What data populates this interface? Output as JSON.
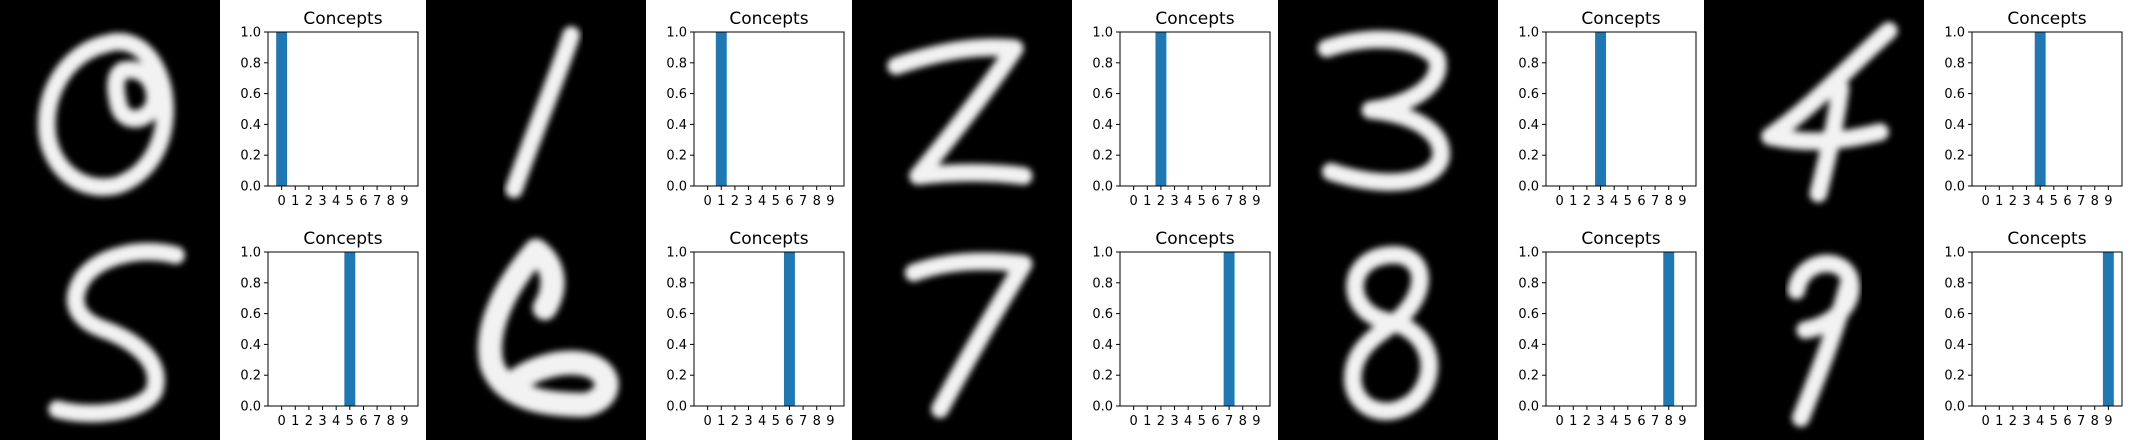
{
  "chart_data": [
    {
      "type": "bar",
      "digit": "0",
      "title": "Concepts",
      "categories": [
        "0",
        "1",
        "2",
        "3",
        "4",
        "5",
        "6",
        "7",
        "8",
        "9"
      ],
      "values": [
        1,
        0,
        0,
        0,
        0,
        0,
        0,
        0,
        0,
        0
      ],
      "ylim": [
        0,
        1.0
      ],
      "yticks": [
        "0.0",
        "0.2",
        "0.4",
        "0.6",
        "0.8",
        "1.0"
      ],
      "color": "#1f77b4"
    },
    {
      "type": "bar",
      "digit": "1",
      "title": "Concepts",
      "categories": [
        "0",
        "1",
        "2",
        "3",
        "4",
        "5",
        "6",
        "7",
        "8",
        "9"
      ],
      "values": [
        0,
        1,
        0,
        0,
        0,
        0,
        0,
        0,
        0,
        0
      ],
      "ylim": [
        0,
        1.0
      ],
      "yticks": [
        "0.0",
        "0.2",
        "0.4",
        "0.6",
        "0.8",
        "1.0"
      ],
      "color": "#1f77b4"
    },
    {
      "type": "bar",
      "digit": "2",
      "title": "Concepts",
      "categories": [
        "0",
        "1",
        "2",
        "3",
        "4",
        "5",
        "6",
        "7",
        "8",
        "9"
      ],
      "values": [
        0,
        0,
        1,
        0,
        0,
        0,
        0,
        0,
        0,
        0
      ],
      "ylim": [
        0,
        1.0
      ],
      "yticks": [
        "0.0",
        "0.2",
        "0.4",
        "0.6",
        "0.8",
        "1.0"
      ],
      "color": "#1f77b4"
    },
    {
      "type": "bar",
      "digit": "3",
      "title": "Concepts",
      "categories": [
        "0",
        "1",
        "2",
        "3",
        "4",
        "5",
        "6",
        "7",
        "8",
        "9"
      ],
      "values": [
        0,
        0,
        0,
        1,
        0,
        0,
        0,
        0,
        0,
        0
      ],
      "ylim": [
        0,
        1.0
      ],
      "yticks": [
        "0.0",
        "0.2",
        "0.4",
        "0.6",
        "0.8",
        "1.0"
      ],
      "color": "#1f77b4"
    },
    {
      "type": "bar",
      "digit": "4",
      "title": "Concepts",
      "categories": [
        "0",
        "1",
        "2",
        "3",
        "4",
        "5",
        "6",
        "7",
        "8",
        "9"
      ],
      "values": [
        0,
        0,
        0,
        0,
        1,
        0,
        0,
        0,
        0,
        0
      ],
      "ylim": [
        0,
        1.0
      ],
      "yticks": [
        "0.0",
        "0.2",
        "0.4",
        "0.6",
        "0.8",
        "1.0"
      ],
      "color": "#1f77b4"
    },
    {
      "type": "bar",
      "digit": "5",
      "title": "Concepts",
      "categories": [
        "0",
        "1",
        "2",
        "3",
        "4",
        "5",
        "6",
        "7",
        "8",
        "9"
      ],
      "values": [
        0,
        0,
        0,
        0,
        0,
        1,
        0,
        0,
        0,
        0
      ],
      "ylim": [
        0,
        1.0
      ],
      "yticks": [
        "0.0",
        "0.2",
        "0.4",
        "0.6",
        "0.8",
        "1.0"
      ],
      "color": "#1f77b4"
    },
    {
      "type": "bar",
      "digit": "6",
      "title": "Concepts",
      "categories": [
        "0",
        "1",
        "2",
        "3",
        "4",
        "5",
        "6",
        "7",
        "8",
        "9"
      ],
      "values": [
        0,
        0,
        0,
        0,
        0,
        0,
        1,
        0,
        0,
        0
      ],
      "ylim": [
        0,
        1.0
      ],
      "yticks": [
        "0.0",
        "0.2",
        "0.4",
        "0.6",
        "0.8",
        "1.0"
      ],
      "color": "#1f77b4"
    },
    {
      "type": "bar",
      "digit": "7",
      "title": "Concepts",
      "categories": [
        "0",
        "1",
        "2",
        "3",
        "4",
        "5",
        "6",
        "7",
        "8",
        "9"
      ],
      "values": [
        0,
        0,
        0,
        0,
        0,
        0,
        0,
        1,
        0,
        0
      ],
      "ylim": [
        0,
        1.0
      ],
      "yticks": [
        "0.0",
        "0.2",
        "0.4",
        "0.6",
        "0.8",
        "1.0"
      ],
      "color": "#1f77b4"
    },
    {
      "type": "bar",
      "digit": "8",
      "title": "Concepts",
      "categories": [
        "0",
        "1",
        "2",
        "3",
        "4",
        "5",
        "6",
        "7",
        "8",
        "9"
      ],
      "values": [
        0,
        0,
        0,
        0,
        0,
        0,
        0,
        0,
        1,
        0
      ],
      "ylim": [
        0,
        1.0
      ],
      "yticks": [
        "0.0",
        "0.2",
        "0.4",
        "0.6",
        "0.8",
        "1.0"
      ],
      "color": "#1f77b4"
    },
    {
      "type": "bar",
      "digit": "9",
      "title": "Concepts",
      "categories": [
        "0",
        "1",
        "2",
        "3",
        "4",
        "5",
        "6",
        "7",
        "8",
        "9"
      ],
      "values": [
        0,
        0,
        0,
        0,
        0,
        0,
        0,
        0,
        0,
        1
      ],
      "ylim": [
        0,
        1.0
      ],
      "yticks": [
        "0.0",
        "0.2",
        "0.4",
        "0.6",
        "0.8",
        "1.0"
      ],
      "color": "#1f77b4"
    }
  ]
}
